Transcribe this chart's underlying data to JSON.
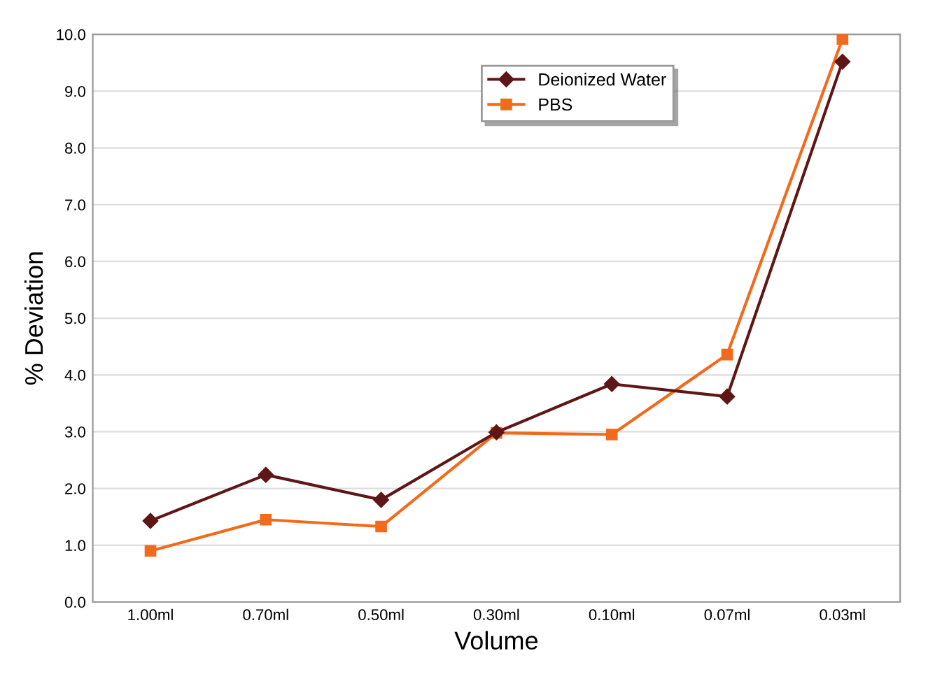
{
  "chart_data": {
    "type": "line",
    "xlabel": "Volume",
    "ylabel": "% Deviation",
    "categories": [
      "1.00ml",
      "0.70ml",
      "0.50ml",
      "0.30ml",
      "0.10ml",
      "0.07ml",
      "0.03ml"
    ],
    "series": [
      {
        "name": "Deionized Water",
        "color": "#5e1616",
        "marker": "diamond",
        "values": [
          1.43,
          2.24,
          1.8,
          2.99,
          3.84,
          3.62,
          9.52
        ]
      },
      {
        "name": "PBS",
        "color": "#f26a1c",
        "marker": "square",
        "values": [
          0.9,
          1.45,
          1.33,
          2.98,
          2.95,
          4.36,
          9.92
        ]
      }
    ],
    "ylim": [
      0,
      10
    ],
    "yticks": [
      {
        "value": 0,
        "label": "0.0"
      },
      {
        "value": 1,
        "label": "1.0"
      },
      {
        "value": 2,
        "label": "2.0"
      },
      {
        "value": 3,
        "label": "3.0"
      },
      {
        "value": 4,
        "label": "4.0"
      },
      {
        "value": 5,
        "label": "5.0"
      },
      {
        "value": 6,
        "label": "6.0"
      },
      {
        "value": 7,
        "label": "7.0"
      },
      {
        "value": 8,
        "label": "8.0"
      },
      {
        "value": 9,
        "label": "9.0"
      },
      {
        "value": 10,
        "label": "10.0"
      }
    ],
    "grid": "y",
    "legend": "top right",
    "line_style": "solid"
  }
}
